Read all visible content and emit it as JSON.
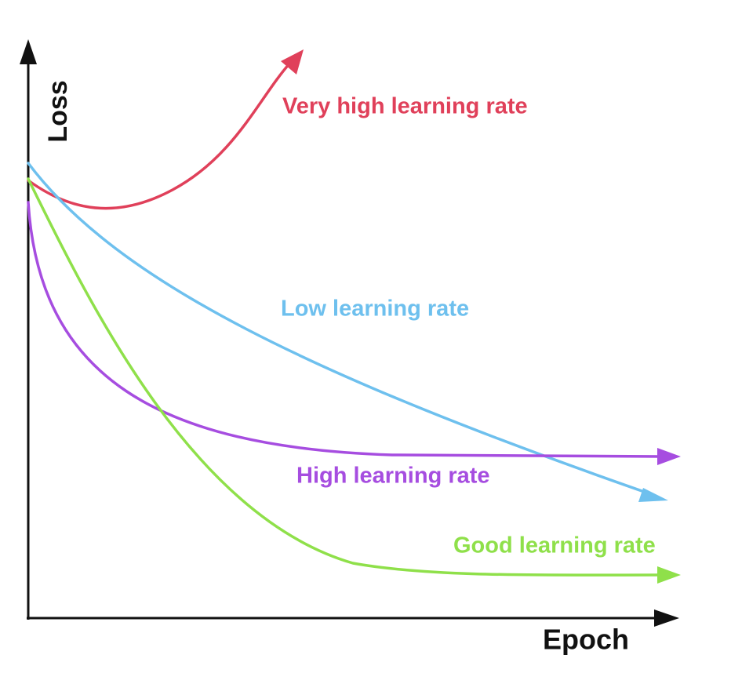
{
  "axes": {
    "y_label": "Loss",
    "x_label": "Epoch"
  },
  "curves": [
    {
      "label": "Very high learning rate"
    },
    {
      "label": "Low learning rate"
    },
    {
      "label": "High learning rate"
    },
    {
      "label": "Good learning rate"
    }
  ]
}
